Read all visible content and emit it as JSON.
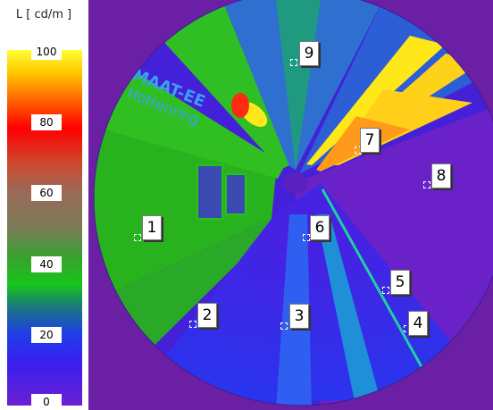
{
  "legend": {
    "title": "L [ cd/m ]",
    "ticks": [
      "100",
      "80",
      "60",
      "40",
      "20",
      "0"
    ],
    "colors": {
      "high": "#ffff33",
      "mid_high": "#ff0000",
      "mid": "#7b7b58",
      "mid_low": "#17c41a",
      "low": "#1e3de8",
      "min": "#6a1fd0"
    }
  },
  "image": {
    "background_color": "#6b1fa4",
    "sign_text_line1": "MAAT-EE",
    "sign_text_line2": "Hottenring"
  },
  "markers": [
    {
      "label": "1"
    },
    {
      "label": "2"
    },
    {
      "label": "3"
    },
    {
      "label": "4"
    },
    {
      "label": "5"
    },
    {
      "label": "6"
    },
    {
      "label": "7"
    },
    {
      "label": "8"
    },
    {
      "label": "9"
    }
  ]
}
